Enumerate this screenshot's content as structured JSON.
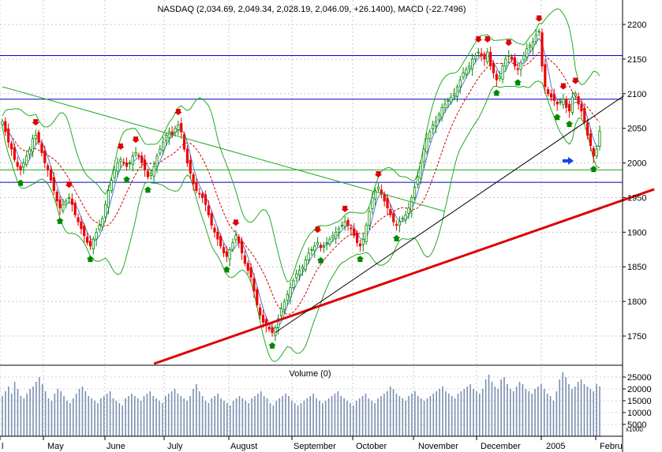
{
  "chart_data": [
    {
      "type": "candlestick",
      "title": "NASDAQ (2,034.69, 2,049.34, 2,028.19, 2,046.09, +26.1400), MACD (-22.7496)",
      "ylim": [
        1710,
        2235
      ],
      "y_ticks": [
        1750,
        1800,
        1850,
        1900,
        1950,
        2000,
        2050,
        2100,
        2150,
        2200
      ],
      "x_tick_labels": [
        "l",
        "May",
        "June",
        "July",
        "August",
        "September",
        "October",
        "November",
        "December",
        "2005",
        "Febru"
      ],
      "grid": true,
      "horizontal_levels": [
        {
          "value": 2155,
          "color": "#0000cc"
        },
        {
          "value": 2092,
          "color": "#0000cc"
        },
        {
          "value": 1990,
          "color": "#22aa22"
        },
        {
          "value": 1972,
          "color": "#0000cc"
        }
      ],
      "series": [
        {
          "kind": "close",
          "values": [
            2060,
            2045,
            2030,
            2020,
            2005,
            1995,
            1990,
            2000,
            2010,
            2020,
            2035,
            2040,
            2030,
            2015,
            2000,
            1990,
            1975,
            1960,
            1945,
            1935,
            1940,
            1945,
            1950,
            1940,
            1925,
            1915,
            1905,
            1895,
            1885,
            1880,
            1890,
            1900,
            1910,
            1920,
            1940,
            1960,
            1975,
            1990,
            2000,
            2005,
            2000,
            1995,
            2000,
            2010,
            2015,
            2010,
            2000,
            1990,
            1980,
            1985,
            1995,
            2010,
            2020,
            2030,
            2040,
            2045,
            2040,
            2050,
            2055,
            2045,
            2020,
            2000,
            1985,
            1970,
            1960,
            1955,
            1950,
            1940,
            1925,
            1910,
            1900,
            1890,
            1880,
            1870,
            1865,
            1875,
            1885,
            1895,
            1885,
            1870,
            1855,
            1845,
            1835,
            1815,
            1795,
            1780,
            1770,
            1765,
            1760,
            1755,
            1762,
            1775,
            1790,
            1800,
            1810,
            1820,
            1830,
            1840,
            1845,
            1850,
            1860,
            1870,
            1875,
            1880,
            1885,
            1878,
            1880,
            1885,
            1890,
            1895,
            1900,
            1905,
            1910,
            1915,
            1910,
            1905,
            1895,
            1885,
            1880,
            1890,
            1910,
            1930,
            1950,
            1960,
            1965,
            1955,
            1945,
            1935,
            1925,
            1915,
            1910,
            1915,
            1920,
            1925,
            1935,
            1950,
            1965,
            1980,
            2000,
            2020,
            2035,
            2045,
            2055,
            2060,
            2070,
            2080,
            2085,
            2090,
            2095,
            2100,
            2110,
            2120,
            2130,
            2135,
            2140,
            2150,
            2155,
            2160,
            2155,
            2150,
            2160,
            2140,
            2130,
            2120,
            2125,
            2140,
            2150,
            2155,
            2150,
            2140,
            2135,
            2145,
            2155,
            2165,
            2170,
            2175,
            2185,
            2190,
            2140,
            2110,
            2100,
            2095,
            2090,
            2085,
            2088,
            2092,
            2080,
            2075,
            2095,
            2100,
            2085,
            2075,
            2060,
            2040,
            2025,
            2010,
            2020,
            2046
          ]
        }
      ],
      "annotations": [
        {
          "type": "trendline",
          "color": "#22aa22",
          "from": [
            0,
            2110
          ],
          "to": [
            146,
            1930
          ]
        },
        {
          "type": "trendline",
          "color": "#dd0000",
          "from": [
            50,
            1710
          ],
          "to": [
            215,
            1962
          ]
        },
        {
          "type": "trendline",
          "color": "#000000",
          "from": [
            90,
            1755
          ],
          "to": [
            205,
            2097
          ]
        }
      ]
    },
    {
      "type": "bar",
      "title": "Volume (0)",
      "y_ticks": [
        5000,
        10000,
        15000,
        20000,
        25000
      ],
      "y_unit": "x1000",
      "ylim": [
        0,
        29000
      ],
      "values": [
        17000,
        19000,
        21000,
        18000,
        23000,
        20000,
        17000,
        16000,
        18000,
        20000,
        21000,
        23000,
        25000,
        22000,
        19000,
        16000,
        15000,
        18000,
        20000,
        19000,
        17000,
        15000,
        14000,
        16000,
        18000,
        20000,
        21000,
        19000,
        17000,
        16000,
        15000,
        14000,
        16000,
        17000,
        18000,
        19000,
        16000,
        15000,
        14000,
        13000,
        16000,
        17000,
        18000,
        17000,
        16000,
        15000,
        17000,
        18000,
        19000,
        17000,
        16000,
        15000,
        14000,
        17000,
        18000,
        19000,
        20000,
        18000,
        17000,
        16000,
        15000,
        17000,
        20000,
        22000,
        19000,
        17000,
        15000,
        14000,
        16000,
        17000,
        18000,
        16000,
        15000,
        14000,
        13000,
        15000,
        16000,
        17000,
        16000,
        15000,
        14000,
        16000,
        17000,
        18000,
        19000,
        17000,
        16000,
        14000,
        13000,
        15000,
        16000,
        17000,
        18000,
        17000,
        15000,
        14000,
        13000,
        14000,
        15000,
        16000,
        17000,
        18000,
        16000,
        15000,
        14000,
        15000,
        16000,
        17000,
        18000,
        19000,
        17000,
        16000,
        15000,
        14000,
        13000,
        15000,
        16000,
        17000,
        18000,
        16000,
        15000,
        14000,
        16000,
        17000,
        18000,
        19000,
        21000,
        20000,
        18000,
        17000,
        16000,
        15000,
        17000,
        18000,
        19000,
        17000,
        16000,
        15000,
        16000,
        17000,
        18000,
        19000,
        20000,
        21000,
        19000,
        18000,
        17000,
        16000,
        18000,
        19000,
        20000,
        21000,
        22000,
        20000,
        19000,
        18000,
        20000,
        24000,
        26000,
        23000,
        21000,
        20000,
        24000,
        25000,
        22000,
        20000,
        19000,
        21000,
        23000,
        22000,
        20000,
        19000,
        18000,
        20000,
        21000,
        22000,
        20000,
        18000,
        17000,
        15000,
        19000,
        24000,
        27000,
        25000,
        22000,
        20000,
        21000,
        23000,
        24000,
        22000,
        21000,
        20000,
        19000,
        22000,
        21000
      ]
    }
  ]
}
